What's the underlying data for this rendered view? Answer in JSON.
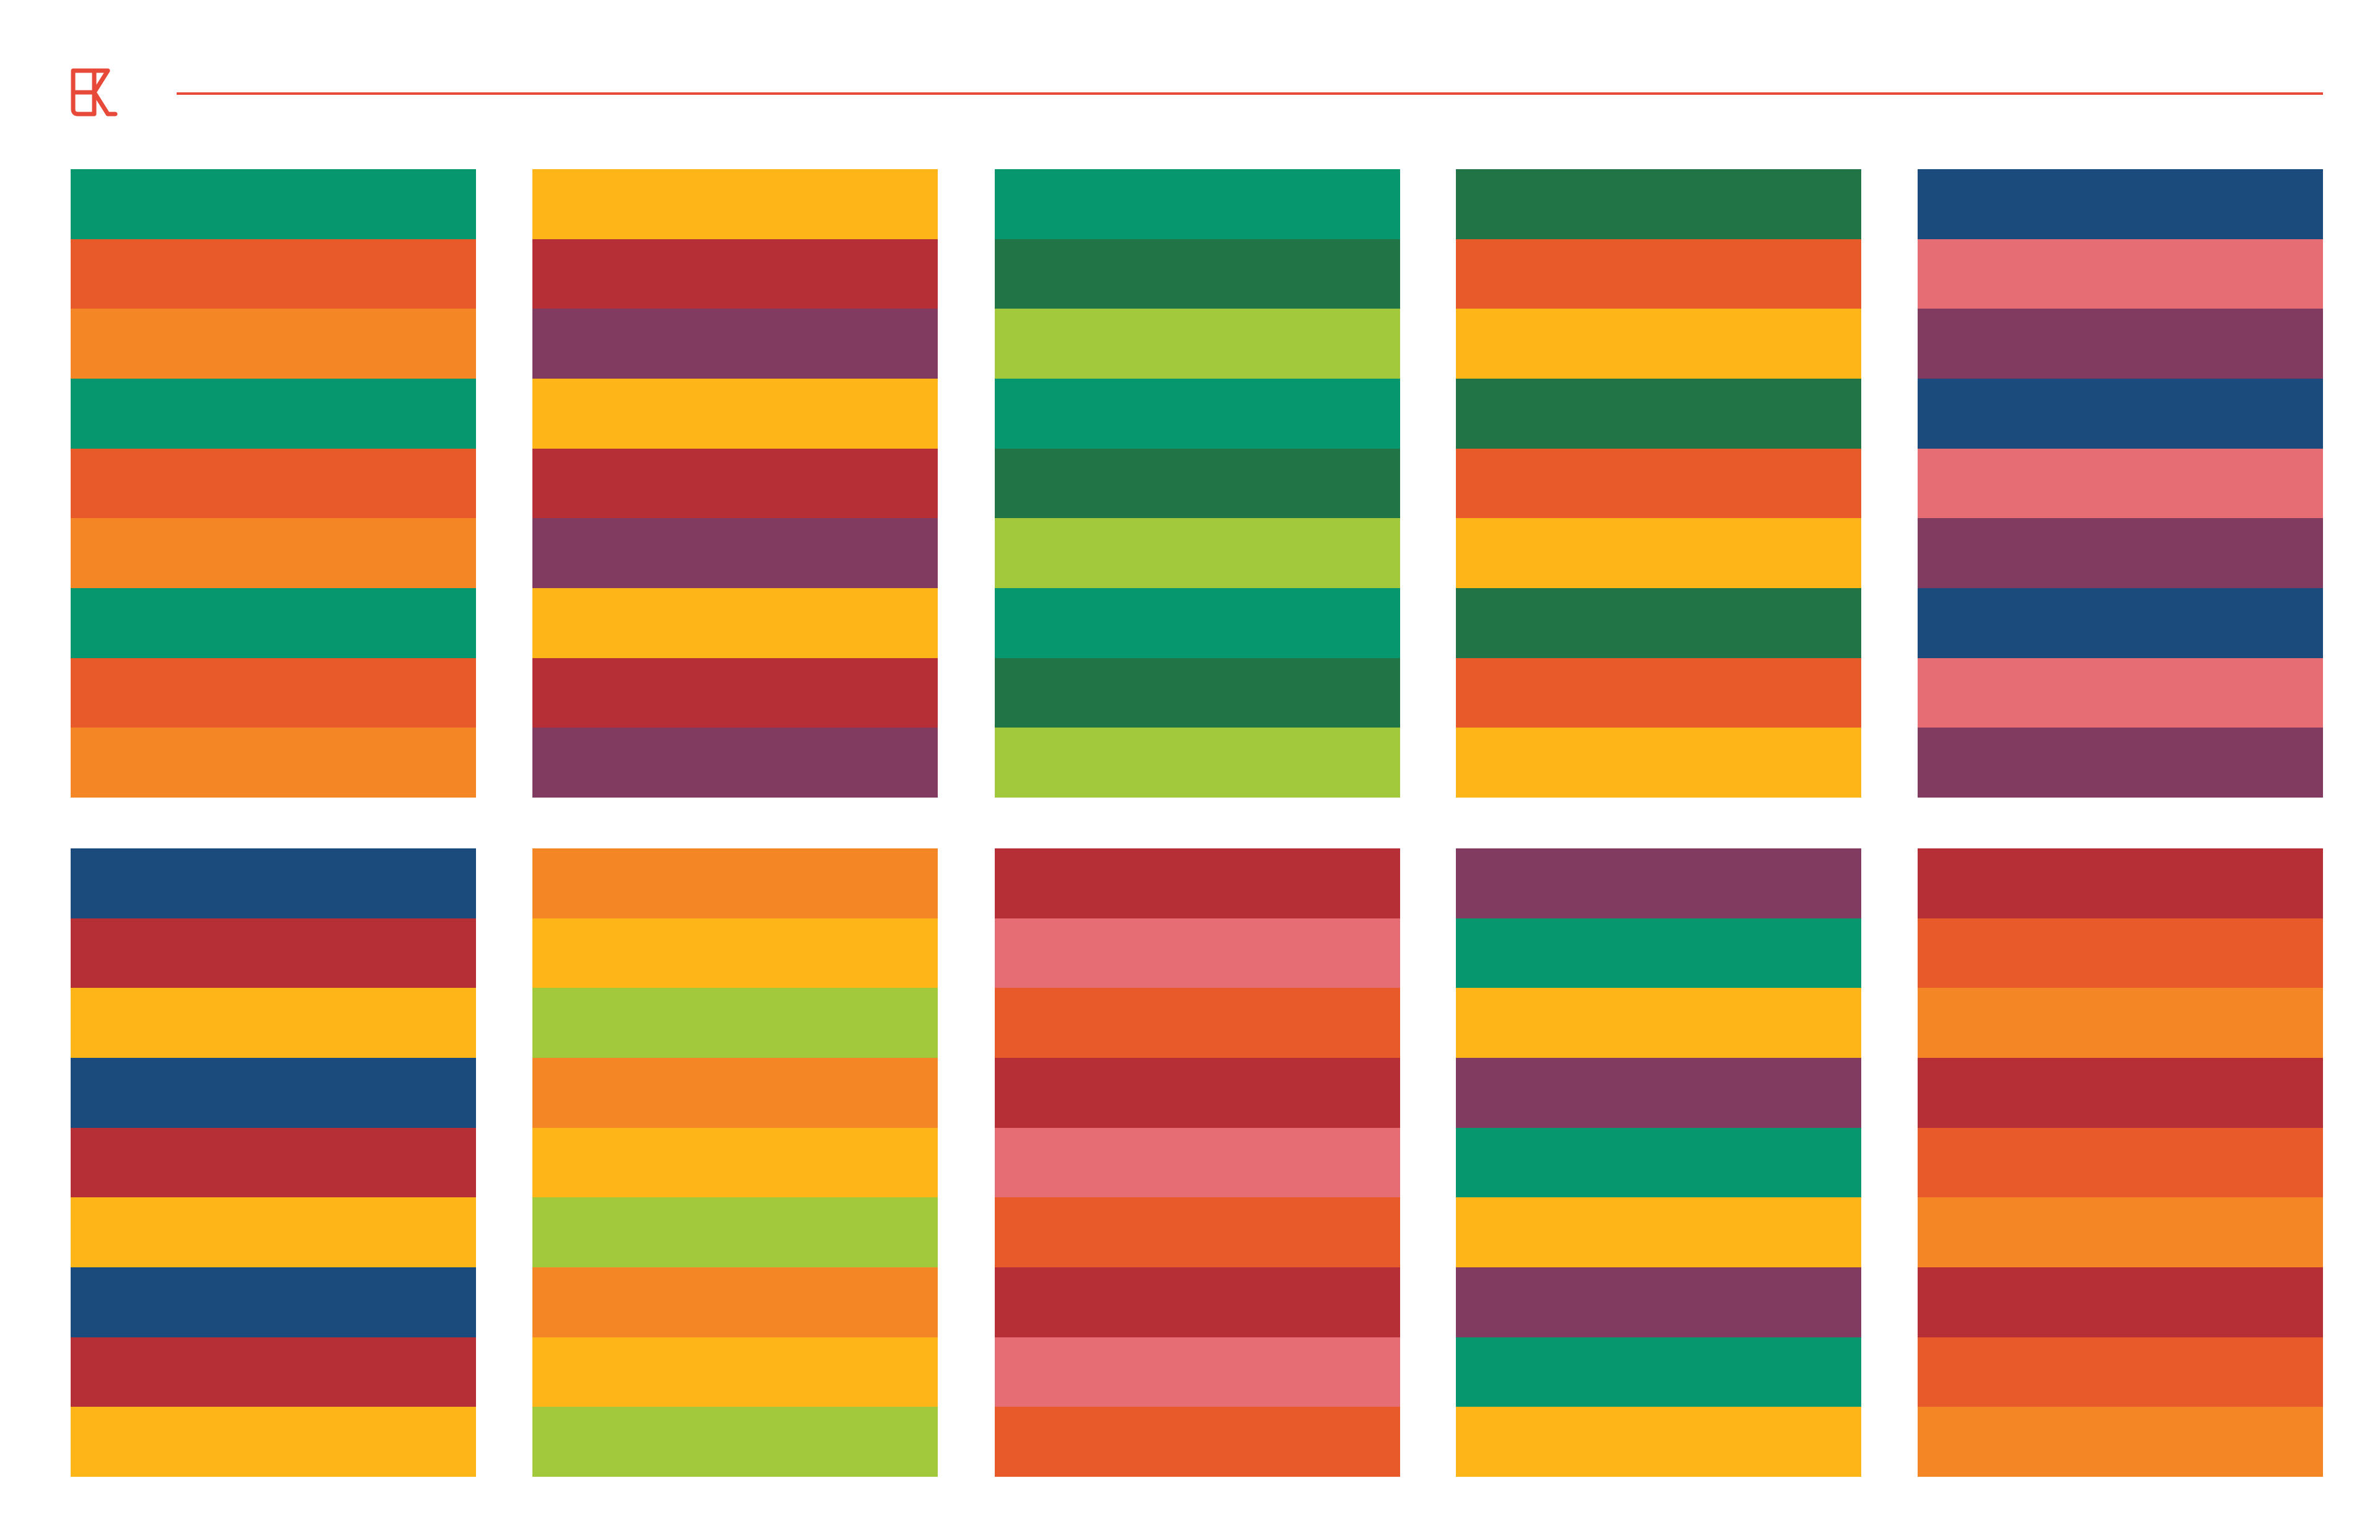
{
  "header": {
    "logo_icon": "brand-logo-icon",
    "rule_color": "#e84a3a"
  },
  "palettes": [
    {
      "stripes": [
        "#07976e",
        "#e85a29",
        "#f58625",
        "#07976e",
        "#e85a29",
        "#f58625",
        "#07976e",
        "#e85a29",
        "#f58625"
      ]
    },
    {
      "stripes": [
        "#fdb517",
        "#b62f36",
        "#813b60",
        "#fdb517",
        "#b62f36",
        "#813b60",
        "#fdb517",
        "#b62f36",
        "#813b60"
      ]
    },
    {
      "stripes": [
        "#07976e",
        "#217446",
        "#a2c93b",
        "#07976e",
        "#217446",
        "#a2c93b",
        "#07976e",
        "#217446",
        "#a2c93b"
      ]
    },
    {
      "stripes": [
        "#217446",
        "#e85a29",
        "#fdb517",
        "#217446",
        "#e85a29",
        "#fdb517",
        "#217446",
        "#e85a29",
        "#fdb517"
      ]
    },
    {
      "stripes": [
        "#1a4b7c",
        "#e66d74",
        "#813b60",
        "#1a4b7c",
        "#e66d74",
        "#813b60",
        "#1a4b7c",
        "#e66d74",
        "#813b60"
      ]
    },
    {
      "stripes": [
        "#1a4b7c",
        "#b62f36",
        "#fdb517",
        "#1a4b7c",
        "#b62f36",
        "#fdb517",
        "#1a4b7c",
        "#b62f36",
        "#fdb517"
      ]
    },
    {
      "stripes": [
        "#f58625",
        "#fdb517",
        "#a2c93b",
        "#f58625",
        "#fdb517",
        "#a2c93b",
        "#f58625",
        "#fdb517",
        "#a2c93b"
      ]
    },
    {
      "stripes": [
        "#b62f36",
        "#e66d74",
        "#e85a29",
        "#b62f36",
        "#e66d74",
        "#e85a29",
        "#b62f36",
        "#e66d74",
        "#e85a29"
      ]
    },
    {
      "stripes": [
        "#813b60",
        "#07976e",
        "#fdb517",
        "#813b60",
        "#07976e",
        "#fdb517",
        "#813b60",
        "#07976e",
        "#fdb517"
      ]
    },
    {
      "stripes": [
        "#b62f36",
        "#e85a29",
        "#f58625",
        "#b62f36",
        "#e85a29",
        "#f58625",
        "#b62f36",
        "#e85a29",
        "#f58625"
      ]
    }
  ]
}
